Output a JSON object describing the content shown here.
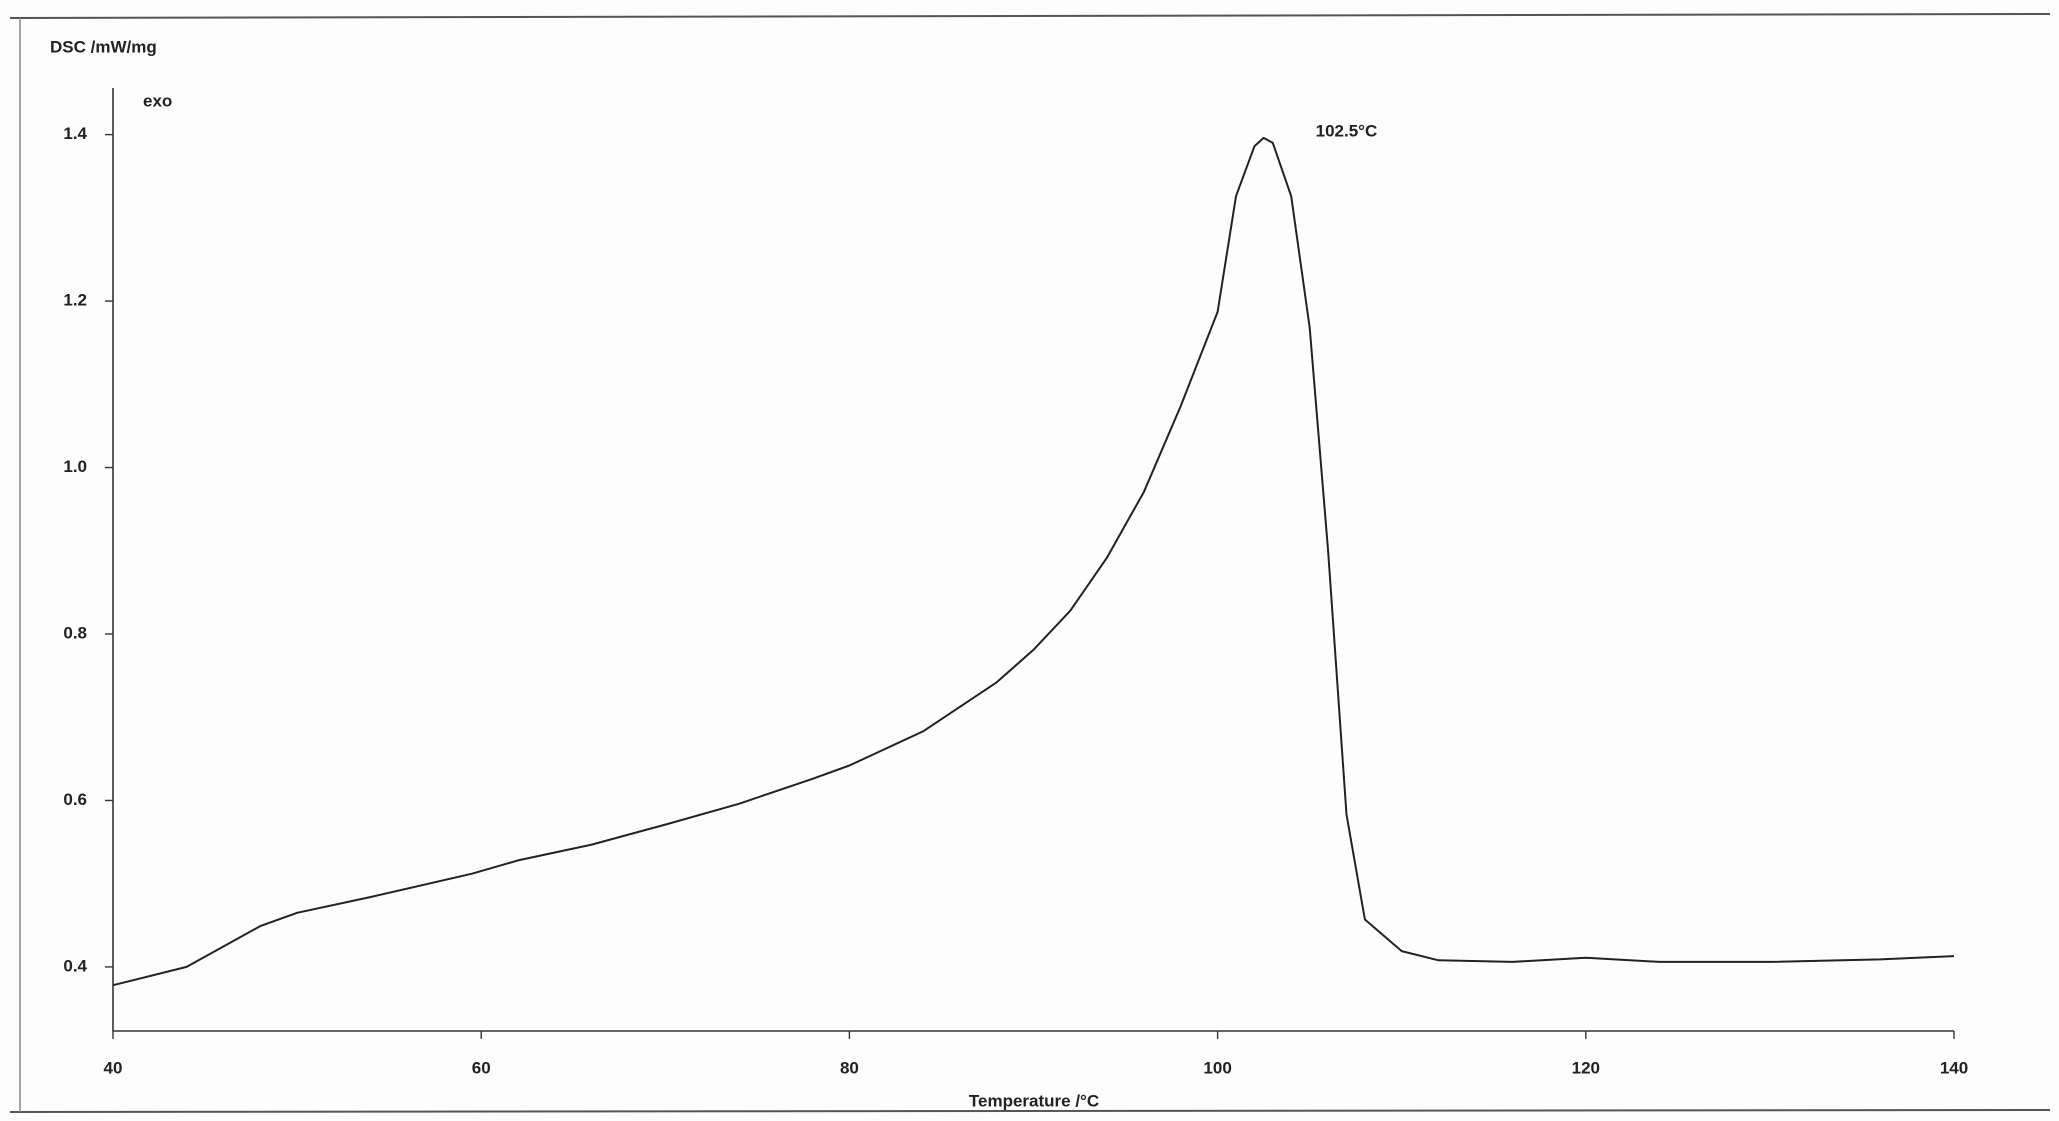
{
  "chart_data": {
    "type": "line",
    "y_label": "DSC /mW/mg",
    "exo_label": "exo",
    "x_label": "Temperature /°C",
    "annotation": {
      "text": "102.5°C",
      "x": 102.5,
      "y": 1.396
    },
    "x": [
      40,
      44,
      48,
      50,
      54,
      59.5,
      62,
      66,
      70,
      74,
      78,
      80,
      84,
      88,
      90,
      92,
      94,
      96,
      98,
      100,
      101,
      102,
      102.5,
      103,
      104,
      105,
      106,
      107,
      108,
      110,
      112,
      116,
      120,
      124,
      130,
      136,
      140
    ],
    "series": [
      {
        "color": "#222222",
        "values": [
          0.378,
          0.4,
          0.449,
          0.465,
          0.484,
          0.512,
          0.528,
          0.547,
          0.571,
          0.596,
          0.626,
          0.642,
          0.683,
          0.742,
          0.781,
          0.828,
          0.892,
          0.971,
          1.074,
          1.187,
          1.326,
          1.386,
          1.396,
          1.39,
          1.326,
          1.168,
          0.9,
          0.583,
          0.457,
          0.419,
          0.408,
          0.406,
          0.411,
          0.406,
          0.406,
          0.409,
          0.413
        ]
      }
    ],
    "xlim": [
      40,
      140
    ],
    "xticks": [
      40,
      60,
      80,
      100,
      120,
      140
    ],
    "ylim": [
      0.323,
      1.45
    ],
    "yticks": [
      0.4,
      0.6,
      0.8,
      {
        "value": 1,
        "label": "1.0"
      },
      1.2,
      1.4
    ],
    "grid": false
  }
}
